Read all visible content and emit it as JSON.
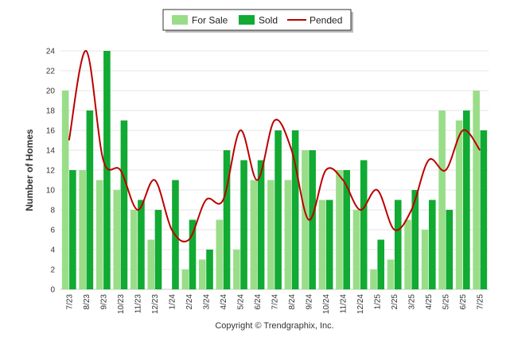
{
  "chart_data": {
    "type": "bar",
    "categories": [
      "7/23",
      "8/23",
      "9/23",
      "10/23",
      "11/23",
      "12/23",
      "1/24",
      "2/24",
      "3/24",
      "4/24",
      "5/24",
      "6/24",
      "7/24",
      "8/24",
      "9/24",
      "10/24",
      "11/24",
      "12/24",
      "1/25",
      "2/25",
      "3/25",
      "4/25",
      "5/25",
      "6/25",
      "7/25"
    ],
    "series": [
      {
        "name": "For Sale",
        "type": "bar",
        "color": "#99dd88",
        "values": [
          20,
          12,
          11,
          10,
          8,
          5,
          0,
          2,
          3,
          7,
          4,
          11,
          11,
          11,
          14,
          9,
          12,
          8,
          2,
          3,
          7,
          6,
          18,
          17,
          20
        ]
      },
      {
        "name": "Sold",
        "type": "bar",
        "color": "#11aa33",
        "values": [
          12,
          18,
          24,
          17,
          9,
          8,
          11,
          7,
          4,
          14,
          13,
          13,
          16,
          16,
          14,
          9,
          12,
          13,
          5,
          9,
          10,
          9,
          8,
          18,
          16
        ]
      },
      {
        "name": "Pended",
        "type": "line",
        "color": "#bb0000",
        "values": [
          15,
          24,
          13,
          12,
          8,
          11,
          6,
          5,
          9,
          9,
          16,
          11,
          17,
          14,
          7,
          12,
          11,
          8,
          10,
          6,
          8,
          13,
          12,
          16,
          14
        ]
      }
    ],
    "xlabel": "",
    "ylabel": "Number of Homes",
    "ylim": [
      0,
      24
    ],
    "yticks": [
      0,
      2,
      4,
      6,
      8,
      10,
      12,
      14,
      16,
      18,
      20,
      22,
      24
    ],
    "grid": true,
    "legend_position": "top-center"
  },
  "footer": {
    "copyright": "Copyright © Trendgraphix, Inc."
  }
}
